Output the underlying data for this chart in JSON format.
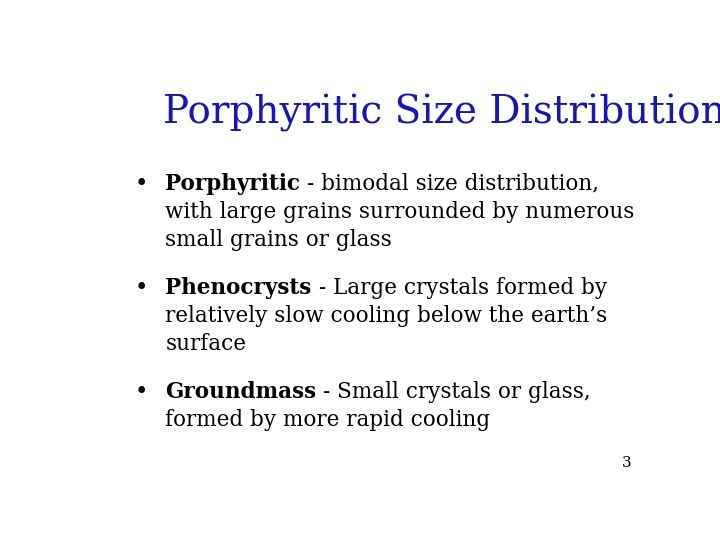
{
  "title": "Porphyritic Size Distribution",
  "title_color": "#1515bb",
  "title_fontsize": 28,
  "background_color": "#ffffff",
  "bullet_points": [
    {
      "bold_text": "Porphyritic",
      "normal_text": " - bimodal size distribution,\nwith large grains surrounded by numerous\nsmall grains or glass"
    },
    {
      "bold_text": "Phenocrysts",
      "normal_text": " - Large crystals formed by\nrelatively slow cooling below the earth’s\nsurface"
    },
    {
      "bold_text": "Groundmass",
      "normal_text": " - Small crystals or glass,\nformed by more rapid cooling"
    }
  ],
  "bullet_color": "#000000",
  "text_color": "#000000",
  "body_fontsize": 15.5,
  "page_number": "3",
  "page_num_fontsize": 11,
  "title_font": "DejaVu Serif",
  "body_font": "DejaVu Serif"
}
